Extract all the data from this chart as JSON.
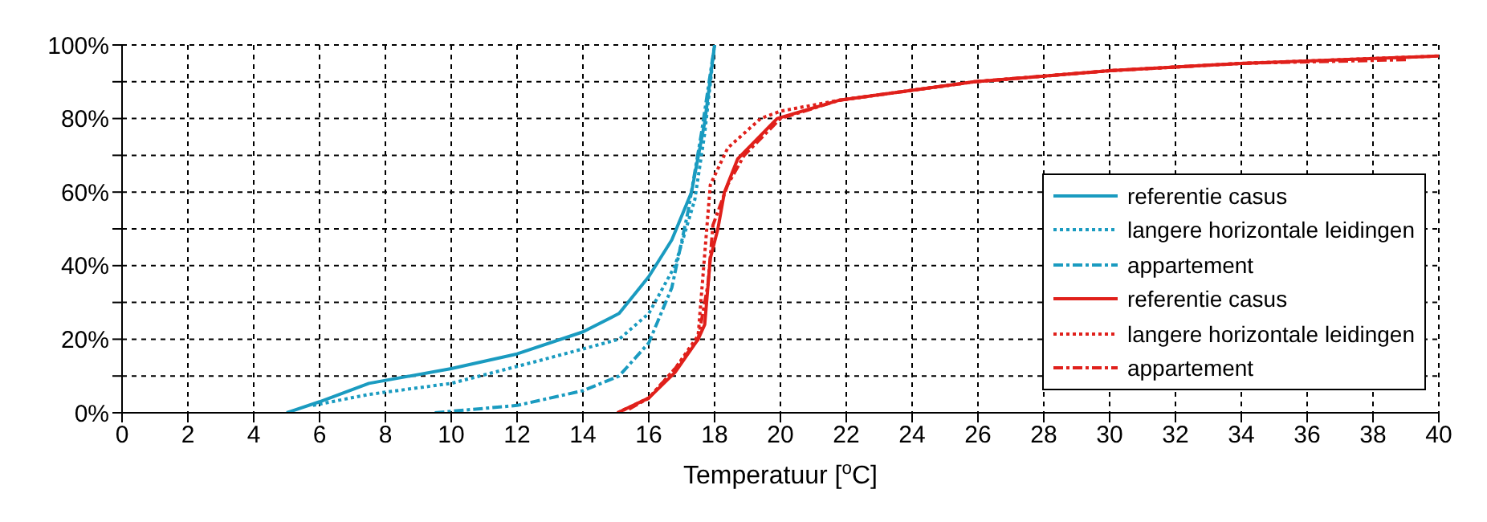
{
  "chart_data": {
    "type": "line",
    "xlabel": "Temperatuur [$^{o}$C]",
    "xlim": [
      0,
      40
    ],
    "xticks": [
      0,
      2,
      4,
      6,
      8,
      10,
      12,
      14,
      16,
      18,
      20,
      22,
      24,
      26,
      28,
      30,
      32,
      34,
      36,
      38,
      40
    ],
    "ylim": [
      0,
      100
    ],
    "yticks": [
      {
        "value": 0,
        "label": "0%"
      },
      {
        "value": 10,
        "label": null
      },
      {
        "value": 20,
        "label": "20%"
      },
      {
        "value": 30,
        "label": null
      },
      {
        "value": 40,
        "label": "40%"
      },
      {
        "value": 50,
        "label": null
      },
      {
        "value": 60,
        "label": "60%"
      },
      {
        "value": 70,
        "label": null
      },
      {
        "value": 80,
        "label": "80%"
      },
      {
        "value": 90,
        "label": null
      },
      {
        "value": 100,
        "label": "100%"
      }
    ],
    "grid": true,
    "legend": "right",
    "marker": "none",
    "series": [
      {
        "name": "referentie casus",
        "color": "#1a9bc0",
        "line_style": "solid",
        "x": [
          5,
          6,
          7.5,
          10,
          12,
          14,
          15.1,
          16,
          16.7,
          17.3,
          17.7,
          18
        ],
        "values": [
          0,
          3,
          8,
          12,
          16,
          22,
          27,
          37,
          47,
          60,
          79,
          100
        ]
      },
      {
        "name": "langere horizontale leidingen",
        "color": "#1a9bc0",
        "line_style": "dotted",
        "x": [
          5.8,
          7.5,
          10,
          12.6,
          15.1,
          16,
          16.8,
          17.4,
          17.7,
          18
        ],
        "values": [
          2,
          5,
          8,
          14,
          20,
          27,
          40,
          58,
          76,
          100
        ]
      },
      {
        "name": "appartement",
        "color": "#1a9bc0",
        "line_style": "dashdot",
        "x": [
          9.5,
          12,
          14,
          15.1,
          16,
          16.7,
          17.2,
          17.6,
          18
        ],
        "values": [
          0,
          2,
          6,
          10,
          19,
          34,
          55,
          76,
          100
        ]
      },
      {
        "name": "referentie casus",
        "color": "#e0201b",
        "line_style": "solid",
        "x": [
          15.05,
          16,
          16.8,
          17.5,
          17.7,
          17.87,
          18.1,
          18.3,
          18.7,
          19.9,
          21.8,
          25.9,
          30,
          34,
          40
        ],
        "values": [
          0,
          4,
          11,
          20,
          24,
          42,
          50,
          60,
          69,
          80,
          85,
          90,
          93,
          95,
          97
        ]
      },
      {
        "name": "langere horizontale leidingen",
        "color": "#e0201b",
        "line_style": "dotted",
        "x": [
          15.05,
          16,
          16.8,
          17.5,
          17.87,
          18.4,
          19.4,
          20,
          21.8,
          25.9,
          30,
          34,
          40
        ],
        "values": [
          0,
          4,
          12,
          21,
          62,
          72,
          80,
          82,
          85,
          90,
          93,
          95,
          97
        ]
      },
      {
        "name": "appartement",
        "color": "#e0201b",
        "line_style": "dashdot",
        "x": [
          15.4,
          16,
          16.8,
          17.5,
          17.8,
          17.95,
          18.4,
          18.9,
          20,
          21.8,
          25.9,
          30,
          34,
          39
        ],
        "values": [
          1,
          4,
          12,
          20,
          35,
          51,
          62,
          70,
          80,
          85,
          90,
          93,
          95,
          96
        ]
      }
    ]
  }
}
